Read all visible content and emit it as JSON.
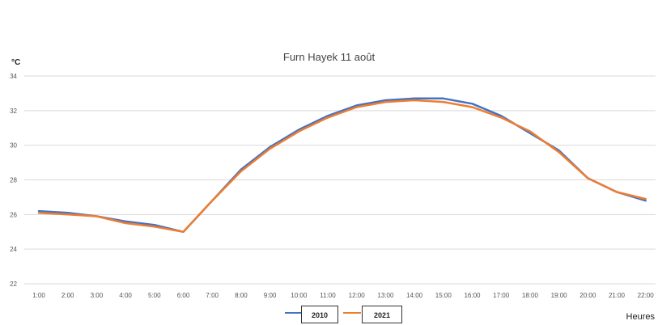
{
  "chart_data": {
    "type": "line",
    "title": "Furn Hayek 11 août",
    "ylabel": "°C",
    "xlabel": "Heures",
    "ylim": [
      22,
      34
    ],
    "yticks": [
      22,
      24,
      26,
      28,
      30,
      32,
      34
    ],
    "grid": true,
    "legend": "bottom",
    "categories": [
      "1:00",
      "2:00",
      "3:00",
      "4:00",
      "5:00",
      "6:00",
      "7:00",
      "8:00",
      "9:00",
      "10:00",
      "11:00",
      "12:00",
      "13:00",
      "14:00",
      "15:00",
      "16:00",
      "17:00",
      "18:00",
      "19:00",
      "20:00",
      "21:00",
      "22:00"
    ],
    "series": [
      {
        "name": "2010",
        "color": "#4472C4",
        "values": [
          26.2,
          26.1,
          25.9,
          25.6,
          25.4,
          25.0,
          26.8,
          28.6,
          29.9,
          30.9,
          31.7,
          32.3,
          32.6,
          32.7,
          32.7,
          32.4,
          31.7,
          30.7,
          29.7,
          28.1,
          27.3,
          26.8
        ]
      },
      {
        "name": "2021",
        "color": "#ED7D31",
        "values": [
          26.1,
          26.0,
          25.9,
          25.5,
          25.3,
          25.0,
          26.8,
          28.5,
          29.8,
          30.8,
          31.6,
          32.2,
          32.5,
          32.6,
          32.5,
          32.2,
          31.6,
          30.8,
          29.6,
          28.1,
          27.3,
          26.9
        ]
      }
    ]
  }
}
